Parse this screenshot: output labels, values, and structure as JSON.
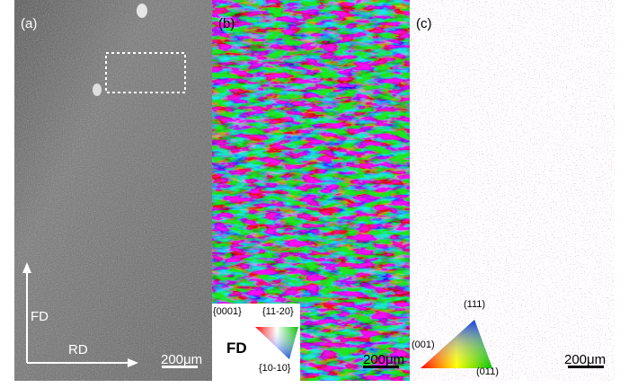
{
  "panel_a": {
    "tag": "(a)",
    "axis_up": "FD",
    "axis_right": "RD",
    "scale": "200μm",
    "colors": {
      "bg": "#6f6f6f",
      "text": "#ffffff"
    }
  },
  "panel_b": {
    "tag": "(b)",
    "scale": "200μm",
    "key": {
      "direction": "FD",
      "corner_top_left": "{0001}",
      "corner_top_right": "{11-20}",
      "corner_bottom": "{10-10}"
    }
  },
  "panel_c": {
    "tag": "(c)",
    "scale": "200μm",
    "key": {
      "corner_top": "(111)",
      "corner_left": "(001)",
      "corner_right": "(011)"
    }
  }
}
